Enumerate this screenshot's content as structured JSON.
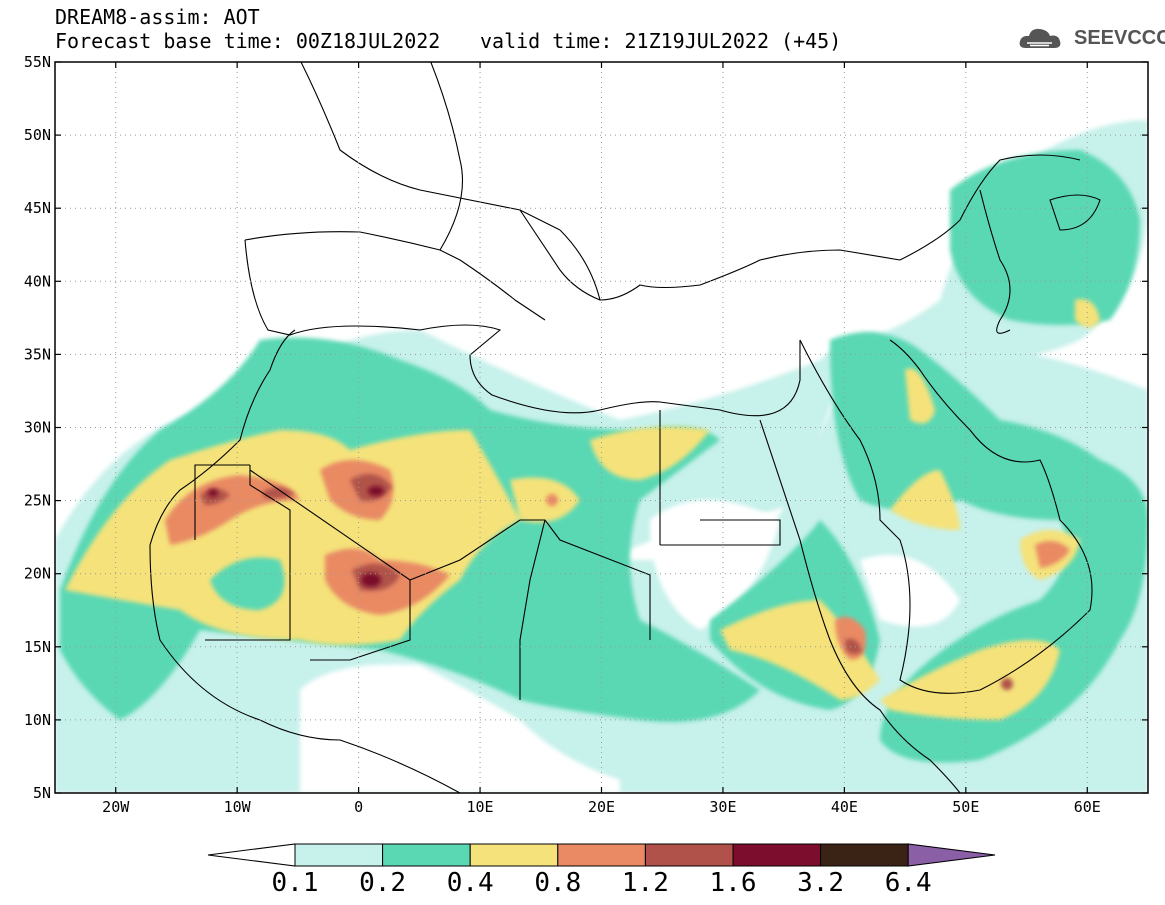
{
  "header": {
    "title_line1": "DREAM8-assim: AOT",
    "title_line2": "Forecast base time: 00Z18JUL2022",
    "valid_time": "valid time: 21Z19JUL2022 (+45)",
    "logo_text": "SEEVCCC",
    "logo_icon": "cloud-icon"
  },
  "map": {
    "lon_range": [
      -25,
      65
    ],
    "lat_range": [
      5,
      55
    ],
    "lon_labels": [
      "20W",
      "10W",
      "0",
      "10E",
      "20E",
      "30E",
      "40E",
      "50E",
      "60E"
    ],
    "lon_values": [
      -20,
      -10,
      0,
      10,
      20,
      30,
      40,
      50,
      60
    ],
    "lat_labels": [
      "5N",
      "10N",
      "15N",
      "20N",
      "25N",
      "30N",
      "35N",
      "40N",
      "45N",
      "50N",
      "55N"
    ],
    "lat_values": [
      5,
      10,
      15,
      20,
      25,
      30,
      35,
      40,
      45,
      50,
      55
    ],
    "grid": "dotted"
  },
  "colorbar": {
    "labels": [
      "0.1",
      "0.2",
      "0.4",
      "0.8",
      "1.2",
      "1.6",
      "3.2",
      "6.4"
    ],
    "colors": [
      "#c7f1eb",
      "#5ad8b4",
      "#f5e27a",
      "#e98a64",
      "#b0524a",
      "#7c0d2c",
      "#3a2314",
      "#8a5fa6"
    ],
    "under_color": "#ffffff"
  }
}
